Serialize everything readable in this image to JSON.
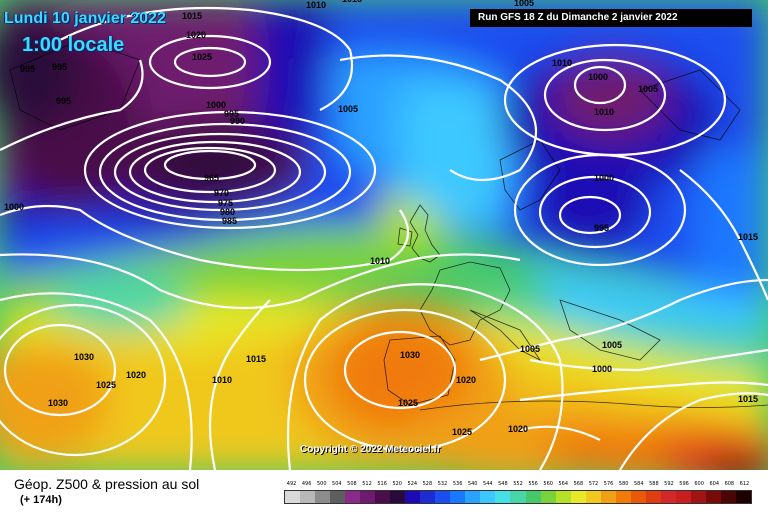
{
  "header": {
    "date": "Lundi 10 janvier 2022",
    "local_time": "1:00 locale",
    "run_info": "Run GFS 18 Z du Dimanche 2 janvier 2022"
  },
  "copyright": "Copyright © 2022 Meteociel.fr",
  "footer": {
    "title": "Géop. Z500 & pression au sol",
    "subtitle": "(+ 174h)"
  },
  "scale": {
    "values": [
      "492",
      "496",
      "500",
      "504",
      "508",
      "512",
      "516",
      "520",
      "524",
      "528",
      "532",
      "536",
      "540",
      "544",
      "548",
      "552",
      "556",
      "560",
      "564",
      "568",
      "572",
      "576",
      "580",
      "584",
      "588",
      "592",
      "596",
      "600",
      "604",
      "608",
      "612"
    ],
    "colors": [
      "#d9d9d9",
      "#b8b8b8",
      "#8c8c8c",
      "#5e5e5e",
      "#8a2b8a",
      "#6e1a6e",
      "#4a0f4a",
      "#2a0a3a",
      "#1e0ab4",
      "#1e2ad2",
      "#1a4ef0",
      "#1a78ff",
      "#2aa2ff",
      "#3cc8ff",
      "#46e0e6",
      "#48d6a8",
      "#46c86a",
      "#7ad23a",
      "#b4e028",
      "#e6e828",
      "#f0c81e",
      "#f0a014",
      "#f07a0a",
      "#e85a0a",
      "#e03c14",
      "#d22828",
      "#c81e1e",
      "#a01414",
      "#780a0a",
      "#4a0505",
      "#1e0000"
    ]
  },
  "isobars": {
    "labels": [
      "1015",
      "1010",
      "1020",
      "1025",
      "995",
      "995",
      "995",
      "1000",
      "1000",
      "995",
      "990",
      "965",
      "970",
      "975",
      "980",
      "985",
      "1005",
      "1010",
      "1015",
      "1030",
      "1025",
      "1020",
      "1030",
      "1010",
      "1030",
      "1025",
      "1020",
      "1025",
      "1020",
      "1005",
      "1005",
      "1000",
      "1015",
      "1015",
      "1010",
      "1000",
      "1005",
      "1010",
      "1000",
      "995",
      "1015",
      "1005"
    ]
  },
  "colors": {
    "title_cyan": "#3fd9ff",
    "run_bg": "#000000",
    "isobar": "#ffffff"
  }
}
